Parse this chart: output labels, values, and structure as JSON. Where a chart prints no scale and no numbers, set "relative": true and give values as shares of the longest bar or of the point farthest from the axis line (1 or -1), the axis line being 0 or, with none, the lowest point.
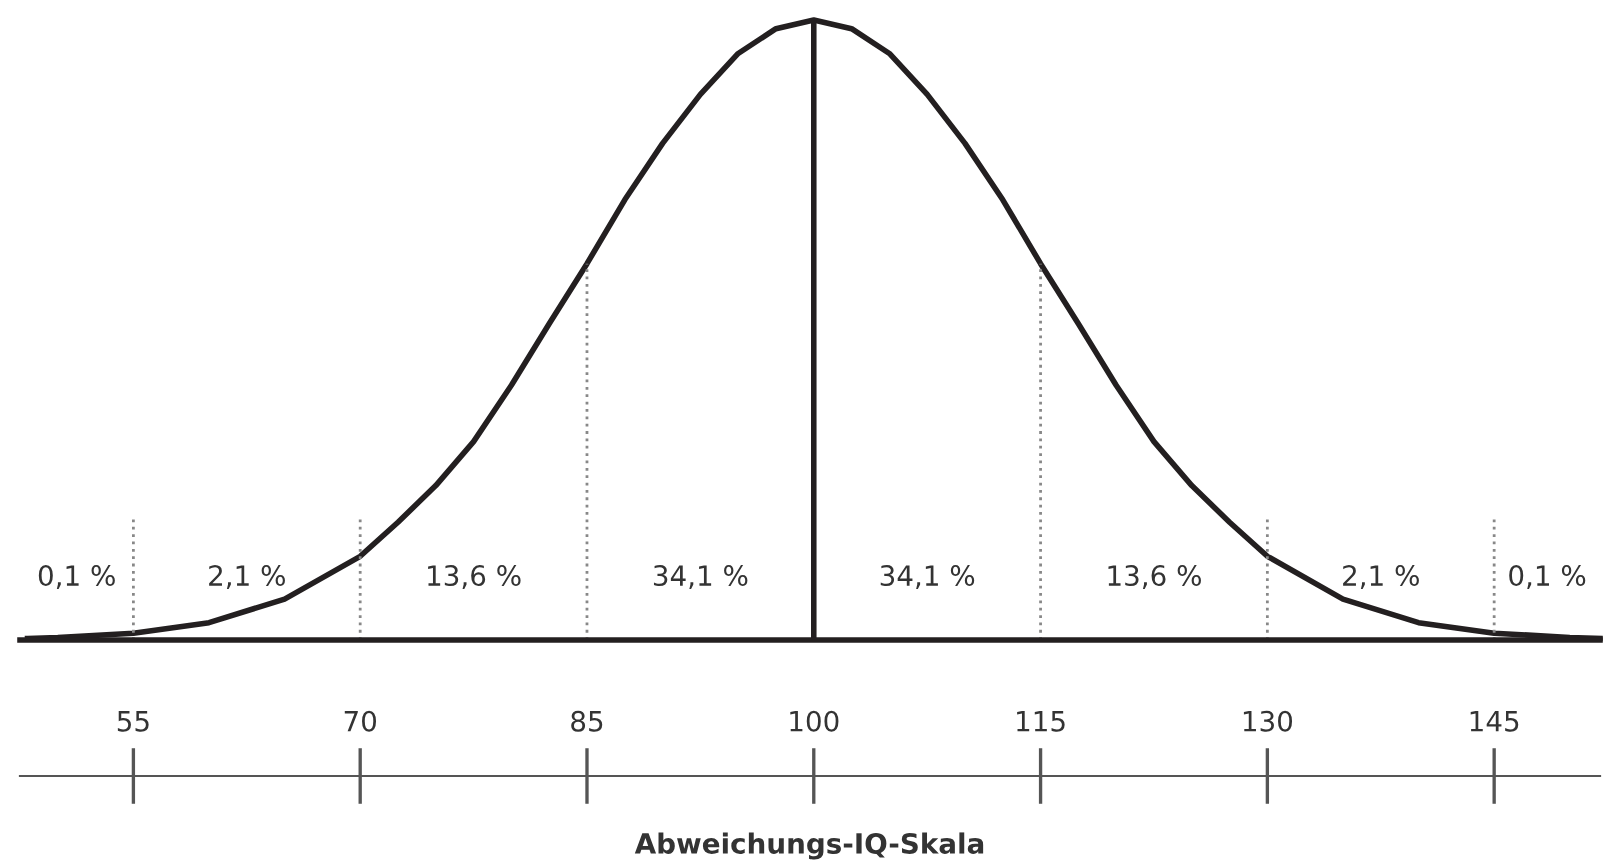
{
  "chart_data": {
    "type": "line",
    "relative": true,
    "xlabel": "Abweichungs-IQ-Skala",
    "x": [
      48,
      50,
      55,
      60,
      65,
      70,
      72.5,
      75,
      77.5,
      80,
      82.5,
      85,
      87.5,
      90,
      92.5,
      95,
      97.5,
      100,
      102.5,
      105,
      107.5,
      110,
      112.5,
      115,
      117.5,
      120,
      122.5,
      125,
      127.5,
      130,
      135,
      140,
      145,
      150,
      152
    ],
    "series": [
      {
        "color": "#231f20",
        "values": [
          0.0025,
          0.004,
          0.011,
          0.028,
          0.066,
          0.135,
          0.19,
          0.249,
          0.32,
          0.411,
          0.51,
          0.607,
          0.71,
          0.801,
          0.88,
          0.946,
          0.986,
          1,
          0.986,
          0.946,
          0.88,
          0.801,
          0.71,
          0.607,
          0.51,
          0.411,
          0.32,
          0.249,
          0.19,
          0.135,
          0.066,
          0.028,
          0.011,
          0.004,
          0.0025
        ]
      }
    ],
    "xlim": [
      47.5,
      152
    ],
    "xticks": [
      55,
      70,
      85,
      100,
      115,
      130,
      145
    ],
    "marker": "none",
    "line_style": "solid",
    "legend": false,
    "ref_lines": [
      {
        "axis": "x",
        "value": 55,
        "color": "#888888",
        "line_style": "dotted"
      },
      {
        "axis": "x",
        "value": 70,
        "color": "#888888",
        "line_style": "dotted"
      },
      {
        "axis": "x",
        "value": 85,
        "color": "#888888",
        "line_style": "dotted"
      },
      {
        "axis": "x",
        "value": 100,
        "color": "#231f20",
        "line_style": "solid"
      },
      {
        "axis": "x",
        "value": 115,
        "color": "#888888",
        "line_style": "dotted"
      },
      {
        "axis": "x",
        "value": 130,
        "color": "#888888",
        "line_style": "dotted"
      },
      {
        "axis": "x",
        "value": 145,
        "color": "#888888",
        "line_style": "dotted"
      }
    ],
    "annotations": [
      "0,1 %",
      "2,1 %",
      "13,6 %",
      "34,1 %",
      "34,1 %",
      "13,6 %",
      "2,1 %",
      "0,1 %"
    ]
  }
}
